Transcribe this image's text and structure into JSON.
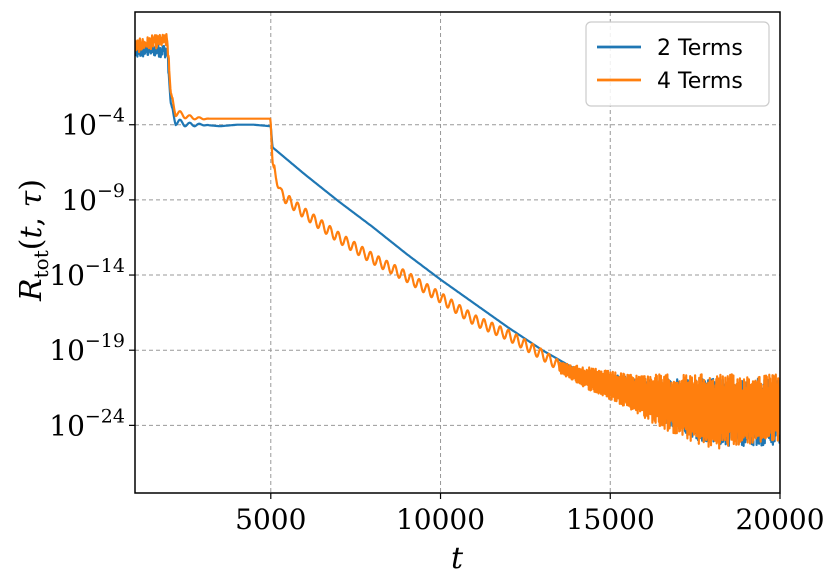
{
  "chart_data": {
    "type": "line",
    "xlabel": "t",
    "ylabel": "R_tot(t, τ)",
    "xlim": [
      1000,
      20000
    ],
    "ylim_log10": [
      -28.5,
      3.5
    ],
    "yscale": "log",
    "grid": true,
    "legend_position": "top-right",
    "x_ticks": [
      {
        "value": 5000,
        "label": "5000"
      },
      {
        "value": 10000,
        "label": "10000"
      },
      {
        "value": 15000,
        "label": "15000"
      },
      {
        "value": 20000,
        "label": "20000"
      }
    ],
    "y_ticks": [
      {
        "log10": -4,
        "base": "10",
        "exp": "−4"
      },
      {
        "log10": -9,
        "base": "10",
        "exp": "−9"
      },
      {
        "log10": -14,
        "base": "10",
        "exp": "−14"
      },
      {
        "log10": -19,
        "base": "10",
        "exp": "−19"
      },
      {
        "log10": -24,
        "base": "10",
        "exp": "−24"
      }
    ],
    "series": [
      {
        "name": "2 Terms",
        "color": "#1f77b4",
        "x": [
          1000,
          1500,
          1950,
          2050,
          2200,
          2600,
          3000,
          3500,
          4000,
          4500,
          5000,
          5050,
          6000,
          7000,
          8000,
          9000,
          10000,
          11000,
          12000,
          13000,
          14000,
          15000,
          16000,
          17000,
          17800,
          18500,
          19000,
          20000
        ],
        "y_log10": [
          0.8,
          1.0,
          0.9,
          -2.5,
          -3.8,
          -4.0,
          -4.0,
          -4.1,
          -4.0,
          -4.0,
          -4.1,
          -5.5,
          -7.3,
          -9.1,
          -10.8,
          -12.6,
          -14.3,
          -15.9,
          -17.5,
          -19.0,
          -20.3,
          -21.6,
          -22.7,
          -23.9,
          -25.1,
          -25.2,
          -24.6,
          -25.0
        ],
        "noise_start": 14500,
        "noise_floor_log10": [
          [
            14500,
            -21.5
          ],
          [
            15500,
            -22.5
          ],
          [
            16500,
            -23.7
          ],
          [
            17500,
            -25.0
          ],
          [
            18500,
            -25.4
          ],
          [
            20000,
            -25.3
          ]
        ],
        "noise_ceiling_log10": [
          [
            14500,
            -20.4
          ],
          [
            16000,
            -20.9
          ],
          [
            18000,
            -20.9
          ],
          [
            20000,
            -20.9
          ]
        ]
      },
      {
        "name": "4 Terms",
        "color": "#ff7f0e",
        "x": [
          1000,
          1500,
          1950,
          2050,
          2200,
          2600,
          3000,
          3500,
          4000,
          4500,
          4990,
          5050,
          5300,
          5600,
          6000,
          7000,
          8000,
          9000,
          10000,
          11000,
          12000,
          13000,
          14000,
          15000,
          16000,
          17000,
          18000,
          19000,
          20000
        ],
        "y_log10": [
          1.2,
          1.5,
          1.6,
          -1.8,
          -3.2,
          -3.5,
          -3.6,
          -3.6,
          -3.6,
          -3.6,
          -3.6,
          -6.5,
          -8.6,
          -9.2,
          -9.9,
          -11.5,
          -12.9,
          -14.1,
          -15.5,
          -17.0,
          -18.0,
          -19.3,
          -20.8,
          -21.8,
          -22.5,
          -23.2,
          -23.6,
          -23.5,
          -23.5
        ],
        "noise_start": 13500,
        "noise_floor_log10": [
          [
            13500,
            -20.5
          ],
          [
            14500,
            -21.8
          ],
          [
            15500,
            -22.8
          ],
          [
            16500,
            -24.2
          ],
          [
            17500,
            -25.2
          ],
          [
            18000,
            -25.6
          ],
          [
            19000,
            -25.3
          ],
          [
            20000,
            -25.0
          ]
        ],
        "noise_ceiling_log10": [
          [
            13500,
            -19.8
          ],
          [
            14500,
            -20.2
          ],
          [
            15500,
            -20.6
          ],
          [
            20000,
            -20.6
          ]
        ]
      }
    ]
  }
}
